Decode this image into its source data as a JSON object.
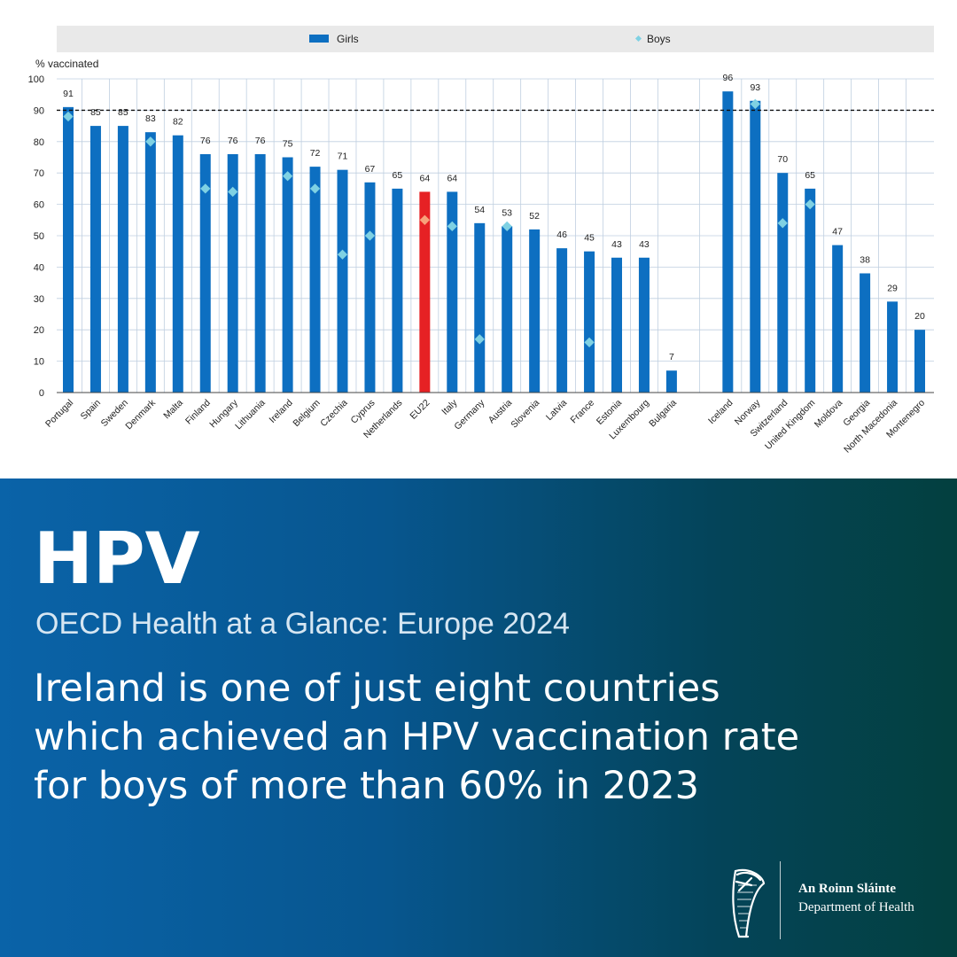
{
  "chart_data": {
    "type": "bar",
    "ylabel": "% vaccinated",
    "ylim": [
      0,
      100
    ],
    "yticks": [
      0,
      10,
      20,
      30,
      40,
      50,
      60,
      70,
      80,
      90,
      100
    ],
    "reference_line": 90,
    "legend": {
      "position": "top",
      "entries": [
        "Girls",
        "Boys"
      ]
    },
    "groups": [
      {
        "categories": [
          "Portugal",
          "Spain",
          "Sweden",
          "Denmark",
          "Malta",
          "Finland",
          "Hungary",
          "Lithuania",
          "Ireland",
          "Belgium",
          "Czechia",
          "Cyprus",
          "Netherlands",
          "EU22",
          "Italy",
          "Germany",
          "Austria",
          "Slovenia",
          "Latvia",
          "France",
          "Estonia",
          "Luxembourg",
          "Bulgaria"
        ],
        "girls": [
          91,
          85,
          85,
          83,
          82,
          76,
          76,
          76,
          75,
          72,
          71,
          67,
          65,
          64,
          64,
          54,
          53,
          52,
          46,
          45,
          43,
          43,
          7
        ],
        "boys": [
          88,
          null,
          null,
          80,
          null,
          65,
          64,
          null,
          69,
          65,
          44,
          50,
          null,
          55,
          53,
          17,
          53,
          null,
          null,
          16,
          null,
          null,
          null
        ]
      },
      {
        "categories": [
          "Iceland",
          "Norway",
          "Switzerland",
          "United Kingdom",
          "Moldova",
          "Georgia",
          "North Macedonia",
          "Montenegro"
        ],
        "girls": [
          96,
          93,
          70,
          65,
          47,
          38,
          29,
          20
        ],
        "boys": [
          null,
          92,
          54,
          60,
          null,
          null,
          null,
          null
        ]
      }
    ],
    "highlight_category": "EU22",
    "colors": {
      "girls": "#0d6fc1",
      "boys": "#7fd1e3",
      "highlight": "#e62124",
      "highlight_boys": "#f7a27b",
      "legend_bg": "#e9e9e9",
      "grid": "#bfcfe0",
      "text": "#222222"
    }
  },
  "banner": {
    "headline": "HPV",
    "source": "OECD Health at a Glance: Europe 2024",
    "statement_lines": [
      "Ireland is one of just eight countries",
      "which achieved an HPV vaccination rate",
      "for boys of more than 60% in 2023"
    ]
  },
  "branding": {
    "emblem": "harp-icon",
    "irish_name": "An Roinn Sláinte",
    "english_name": "Department of Health"
  }
}
